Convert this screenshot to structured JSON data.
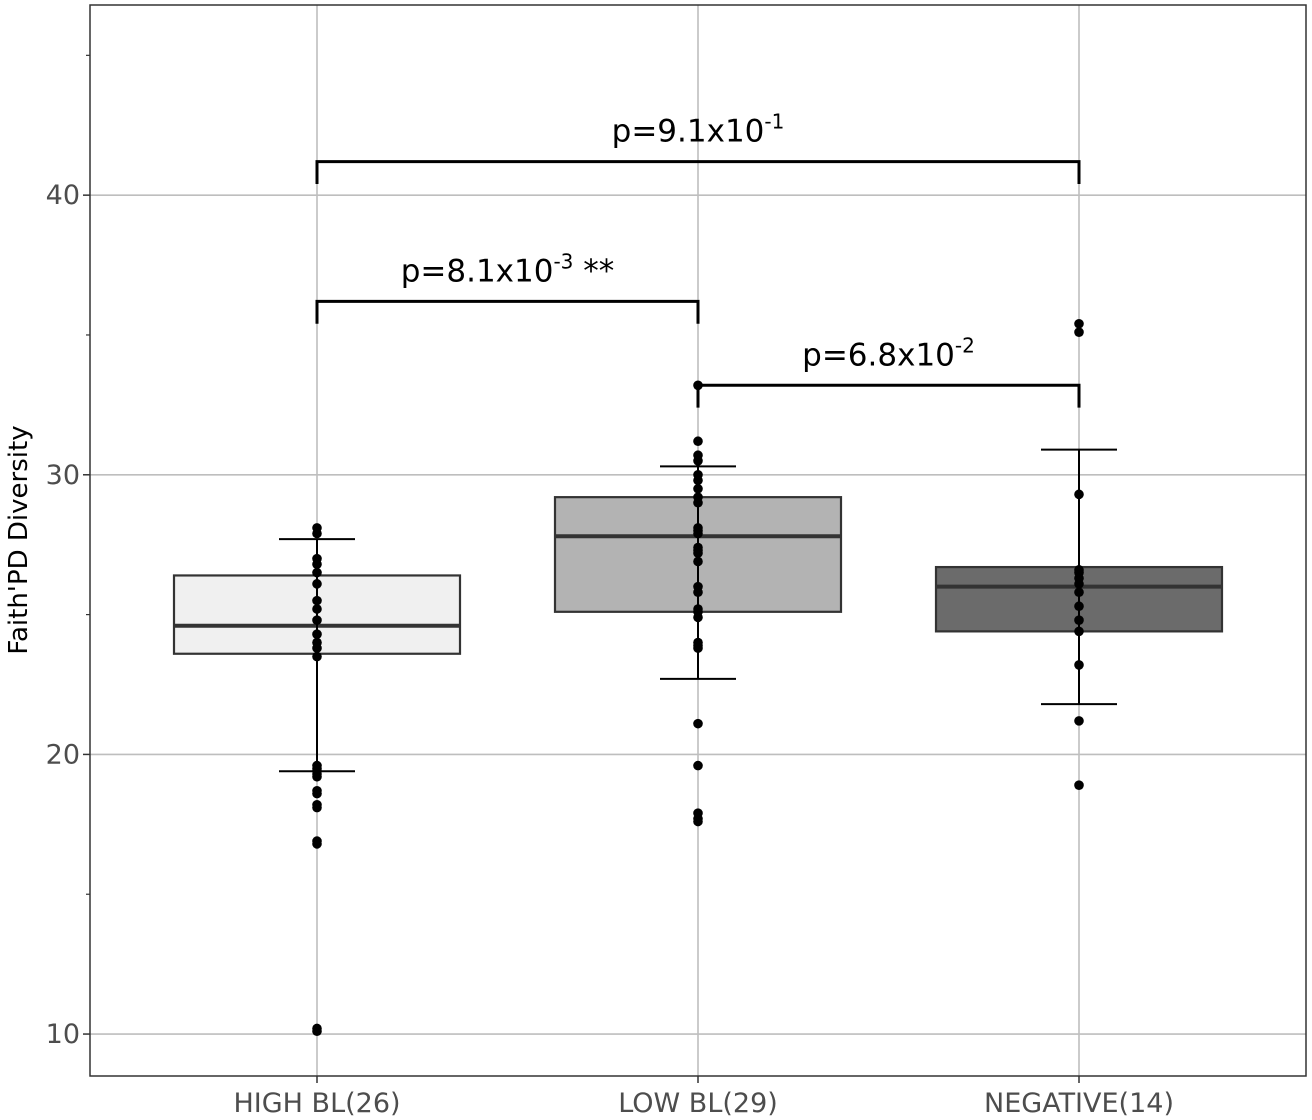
{
  "chart_data": {
    "type": "boxplot",
    "ylabel": "Faith'PD Diversity",
    "xlabel": "",
    "ylim": [
      8.5,
      46.8
    ],
    "y_ticks": [
      10,
      20,
      30,
      40
    ],
    "y_minor_ticks": [
      15,
      25,
      35,
      45
    ],
    "grid": true,
    "legend": "none",
    "categories": [
      "HIGH BL(26)",
      "LOW BL(29)",
      "NEGATIVE(14)"
    ],
    "boxes": [
      {
        "category": "HIGH BL(26)",
        "fill": "#f0f0f0",
        "q1": 23.6,
        "median": 24.6,
        "q3": 26.4,
        "error_low": 19.4,
        "error_high": 27.7
      },
      {
        "category": "LOW BL(29)",
        "fill": "#b3b3b3",
        "q1": 25.1,
        "median": 27.8,
        "q3": 29.2,
        "error_low": 22.7,
        "error_high": 30.3
      },
      {
        "category": "NEGATIVE(14)",
        "fill": "#6b6b6b",
        "q1": 24.4,
        "median": 26.0,
        "q3": 26.7,
        "error_low": 21.8,
        "error_high": 30.9
      }
    ],
    "points": [
      [
        28.1,
        27.9,
        26.8,
        26.5,
        26.1,
        25.5,
        25.2,
        24.8,
        24.3,
        24.0,
        23.8,
        23.5,
        19.6,
        19.5,
        19.4,
        19.3,
        19.2,
        18.7,
        18.6,
        18.2,
        18.1,
        16.9,
        16.8,
        10.2,
        10.1,
        27.0
      ],
      [
        33.2,
        31.2,
        30.7,
        30.5,
        29.8,
        29.5,
        29.2,
        28.1,
        27.9,
        27.4,
        27.2,
        26.9,
        25.8,
        25.2,
        25.1,
        24.0,
        23.8,
        21.1,
        19.6,
        17.9,
        17.7,
        17.6,
        28.0,
        27.3,
        26.0,
        24.9,
        29.0,
        30.0,
        23.9
      ],
      [
        35.4,
        35.1,
        29.3,
        26.6,
        26.5,
        26.1,
        25.8,
        25.3,
        24.8,
        24.4,
        23.2,
        21.2,
        18.9,
        26.3
      ]
    ],
    "comparisons": [
      {
        "from": 0,
        "to": 1,
        "y": 36.2,
        "tip": 35.4,
        "p_base": "p=8.1x10",
        "p_exp": "-3",
        "p_suffix": " **"
      },
      {
        "from": 1,
        "to": 2,
        "y": 33.2,
        "tip": 32.4,
        "p_base": "p=6.8x10",
        "p_exp": "-2",
        "p_suffix": ""
      },
      {
        "from": 0,
        "to": 2,
        "y": 41.2,
        "tip": 40.4,
        "p_base": "p=9.1x10",
        "p_exp": "-1",
        "p_suffix": ""
      }
    ],
    "colors": {
      "grid": "#bebebe",
      "border": "#333333",
      "median": "#333333",
      "points": "#000000"
    }
  }
}
